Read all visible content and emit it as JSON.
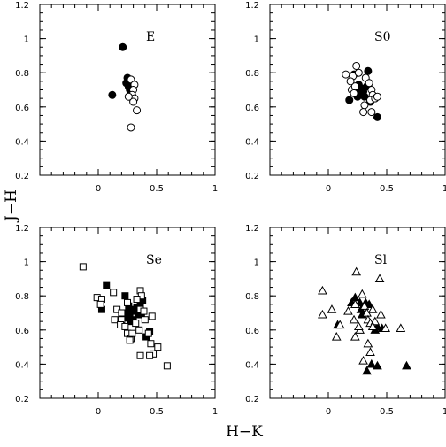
{
  "figure": {
    "xlabel": "H−K",
    "ylabel": "J−H"
  },
  "chart_data": [
    {
      "type": "scatter",
      "panel_label": "E",
      "xlim": [
        -0.5,
        1.0
      ],
      "ylim": [
        0.2,
        1.2
      ],
      "xticks": [
        "0",
        "0.5",
        "1"
      ],
      "yticks": [
        "0.2",
        "0.4",
        "0.6",
        "0.8",
        "1",
        "1.2"
      ],
      "series": [
        {
          "marker": "filled-circle",
          "points": [
            [
              0.21,
              0.95
            ],
            [
              0.12,
              0.67
            ],
            [
              0.24,
              0.74
            ],
            [
              0.26,
              0.72
            ],
            [
              0.27,
              0.7
            ],
            [
              0.29,
              0.74
            ],
            [
              0.25,
              0.77
            ],
            [
              0.28,
              0.69
            ]
          ]
        },
        {
          "marker": "open-circle",
          "points": [
            [
              0.28,
              0.76
            ],
            [
              0.31,
              0.73
            ],
            [
              0.3,
              0.7
            ],
            [
              0.29,
              0.67
            ],
            [
              0.31,
              0.65
            ],
            [
              0.3,
              0.63
            ],
            [
              0.33,
              0.58
            ],
            [
              0.28,
              0.48
            ],
            [
              0.26,
              0.66
            ]
          ]
        }
      ]
    },
    {
      "type": "scatter",
      "panel_label": "S0",
      "xlim": [
        -0.5,
        1.0
      ],
      "ylim": [
        0.2,
        1.2
      ],
      "xticks": [
        "0",
        "0.5",
        "1"
      ],
      "yticks": [
        "0.2",
        "0.4",
        "0.6",
        "0.8",
        "1",
        "1.2"
      ],
      "series": [
        {
          "marker": "filled-circle",
          "points": [
            [
              0.22,
              0.79
            ],
            [
              0.34,
              0.81
            ],
            [
              0.26,
              0.73
            ],
            [
              0.28,
              0.71
            ],
            [
              0.3,
              0.69
            ],
            [
              0.27,
              0.67
            ],
            [
              0.31,
              0.66
            ],
            [
              0.24,
              0.7
            ],
            [
              0.33,
              0.72
            ],
            [
              0.36,
              0.63
            ],
            [
              0.18,
              0.64
            ],
            [
              0.42,
              0.54
            ],
            [
              0.29,
              0.68
            ],
            [
              0.25,
              0.66
            ]
          ]
        },
        {
          "marker": "open-circle",
          "points": [
            [
              0.15,
              0.79
            ],
            [
              0.21,
              0.78
            ],
            [
              0.24,
              0.84
            ],
            [
              0.26,
              0.8
            ],
            [
              0.32,
              0.77
            ],
            [
              0.35,
              0.74
            ],
            [
              0.37,
              0.7
            ],
            [
              0.38,
              0.67
            ],
            [
              0.36,
              0.64
            ],
            [
              0.4,
              0.65
            ],
            [
              0.2,
              0.7
            ],
            [
              0.22,
              0.68
            ],
            [
              0.31,
              0.61
            ],
            [
              0.3,
              0.57
            ],
            [
              0.37,
              0.57
            ],
            [
              0.42,
              0.66
            ],
            [
              0.23,
              0.72
            ],
            [
              0.19,
              0.75
            ]
          ]
        }
      ]
    },
    {
      "type": "scatter",
      "panel_label": "Se",
      "xlim": [
        -0.5,
        1.0
      ],
      "ylim": [
        0.2,
        1.2
      ],
      "xticks": [
        "0",
        "0.5",
        "1"
      ],
      "yticks": [
        "0.2",
        "0.4",
        "0.6",
        "0.8",
        "1",
        "1.2"
      ],
      "series": [
        {
          "marker": "filled-square",
          "points": [
            [
              0.07,
              0.86
            ],
            [
              0.23,
              0.8
            ],
            [
              0.26,
              0.74
            ],
            [
              0.25,
              0.7
            ],
            [
              0.27,
              0.68
            ],
            [
              0.29,
              0.72
            ],
            [
              0.3,
              0.66
            ],
            [
              0.33,
              0.73
            ],
            [
              0.36,
              0.74
            ],
            [
              0.38,
              0.77
            ],
            [
              0.41,
              0.56
            ],
            [
              0.44,
              0.59
            ],
            [
              0.34,
              0.69
            ],
            [
              0.31,
              0.71
            ],
            [
              0.28,
              0.65
            ],
            [
              0.24,
              0.67
            ],
            [
              0.03,
              0.72
            ],
            [
              0.37,
              0.69
            ]
          ]
        },
        {
          "marker": "open-square",
          "points": [
            [
              -0.13,
              0.97
            ],
            [
              -0.01,
              0.79
            ],
            [
              0.03,
              0.78
            ],
            [
              0.02,
              0.75
            ],
            [
              0.13,
              0.82
            ],
            [
              0.16,
              0.72
            ],
            [
              0.2,
              0.7
            ],
            [
              0.2,
              0.66
            ],
            [
              0.14,
              0.66
            ],
            [
              0.19,
              0.63
            ],
            [
              0.23,
              0.62
            ],
            [
              0.25,
              0.58
            ],
            [
              0.28,
              0.55
            ],
            [
              0.29,
              0.58
            ],
            [
              0.32,
              0.64
            ],
            [
              0.35,
              0.6
            ],
            [
              0.36,
              0.72
            ],
            [
              0.39,
              0.71
            ],
            [
              0.36,
              0.83
            ],
            [
              0.37,
              0.8
            ],
            [
              0.4,
              0.66
            ],
            [
              0.46,
              0.68
            ],
            [
              0.43,
              0.58
            ],
            [
              0.45,
              0.52
            ],
            [
              0.47,
              0.46
            ],
            [
              0.44,
              0.45
            ],
            [
              0.36,
              0.45
            ],
            [
              0.51,
              0.5
            ],
            [
              0.59,
              0.39
            ],
            [
              0.33,
              0.78
            ],
            [
              0.25,
              0.76
            ],
            [
              0.27,
              0.54
            ]
          ]
        }
      ]
    },
    {
      "type": "scatter",
      "panel_label": "Sl",
      "xlim": [
        -0.5,
        1.0
      ],
      "ylim": [
        0.2,
        1.2
      ],
      "xticks": [
        "0",
        "0.5",
        "1"
      ],
      "yticks": [
        "0.2",
        "0.4",
        "0.6",
        "0.8",
        "1",
        "1.2"
      ],
      "series": [
        {
          "marker": "filled-triangle",
          "points": [
            [
              0.08,
              0.63
            ],
            [
              0.23,
              0.79
            ],
            [
              0.2,
              0.76
            ],
            [
              0.28,
              0.72
            ],
            [
              0.29,
              0.69
            ],
            [
              0.32,
              0.76
            ],
            [
              0.35,
              0.75
            ],
            [
              0.42,
              0.62
            ],
            [
              0.46,
              0.61
            ],
            [
              0.42,
              0.39
            ],
            [
              0.33,
              0.36
            ],
            [
              0.37,
              0.4
            ],
            [
              0.67,
              0.39
            ],
            [
              0.27,
              0.76
            ],
            [
              0.4,
              0.6
            ]
          ]
        },
        {
          "marker": "open-triangle",
          "points": [
            [
              -0.05,
              0.83
            ],
            [
              -0.05,
              0.69
            ],
            [
              0.07,
              0.56
            ],
            [
              0.03,
              0.72
            ],
            [
              0.1,
              0.63
            ],
            [
              0.17,
              0.71
            ],
            [
              0.24,
              0.94
            ],
            [
              0.23,
              0.75
            ],
            [
              0.27,
              0.6
            ],
            [
              0.29,
              0.81
            ],
            [
              0.31,
              0.74
            ],
            [
              0.33,
              0.7
            ],
            [
              0.34,
              0.66
            ],
            [
              0.36,
              0.64
            ],
            [
              0.38,
              0.72
            ],
            [
              0.44,
              0.9
            ],
            [
              0.45,
              0.69
            ],
            [
              0.4,
              0.65
            ],
            [
              0.38,
              0.62
            ],
            [
              0.34,
              0.52
            ],
            [
              0.3,
              0.42
            ],
            [
              0.36,
              0.47
            ],
            [
              0.62,
              0.61
            ],
            [
              0.23,
              0.56
            ],
            [
              0.22,
              0.66
            ],
            [
              0.26,
              0.62
            ],
            [
              0.49,
              0.61
            ]
          ]
        }
      ]
    }
  ]
}
